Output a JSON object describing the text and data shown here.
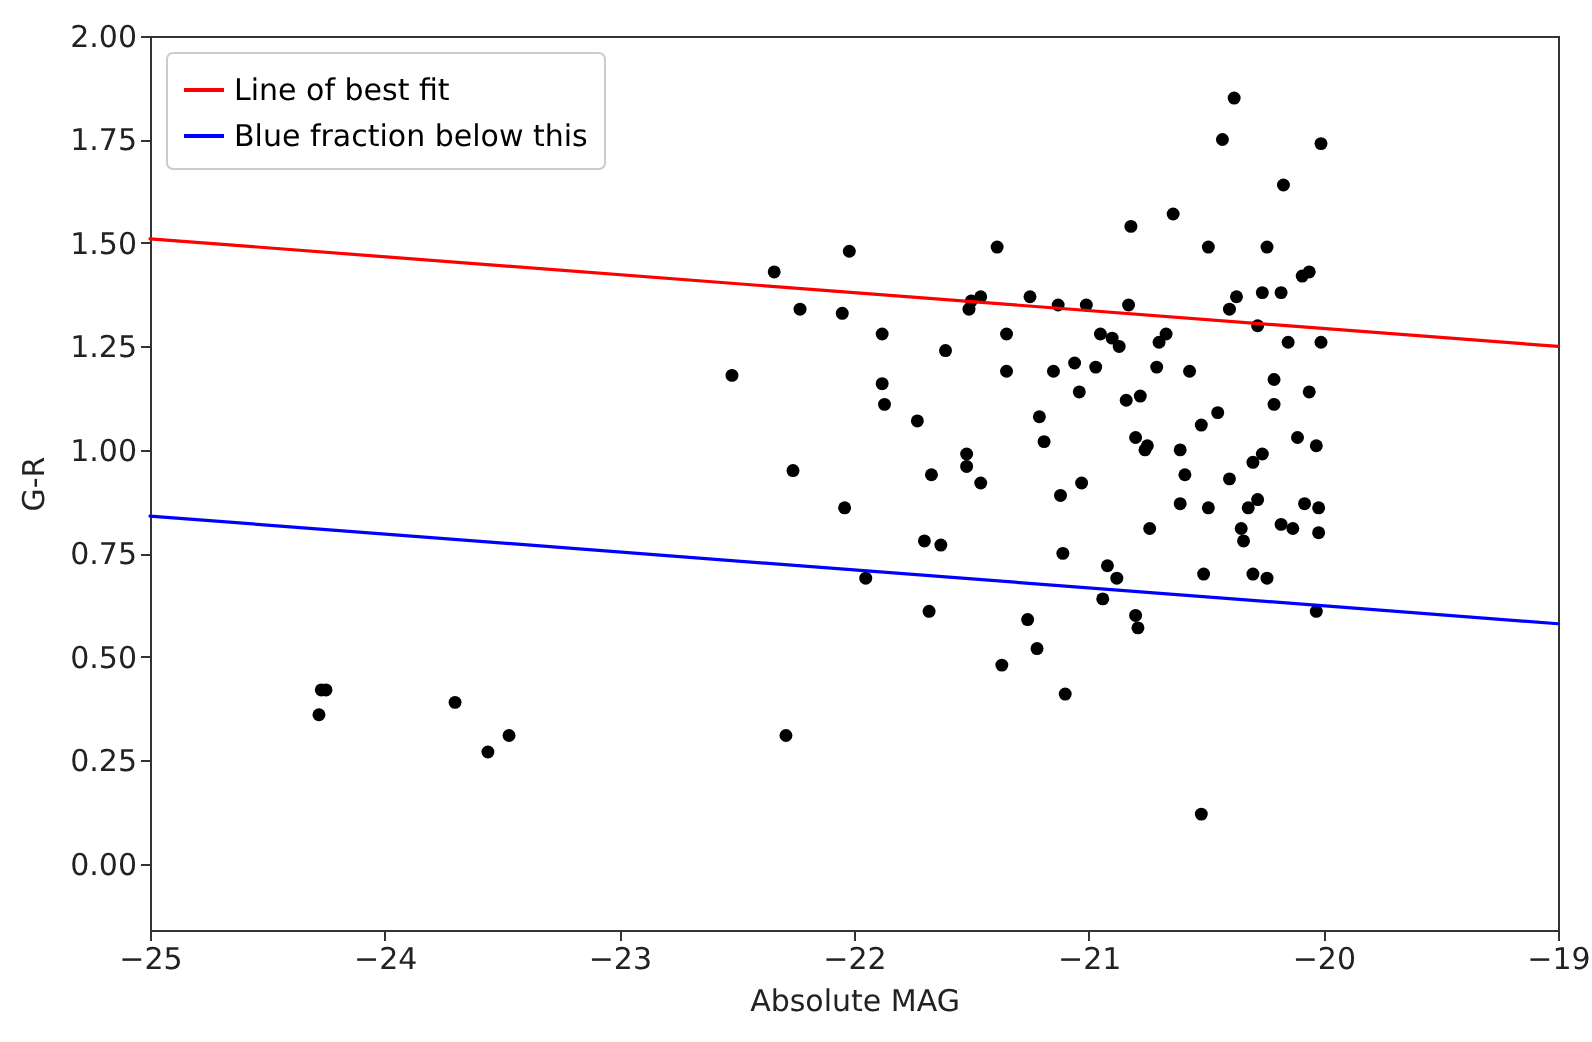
{
  "chart_data": {
    "xlabel": "Absolute MAG",
    "ylabel": "G-R",
    "xlim": [
      -25,
      -19
    ],
    "xticks": [
      -25,
      -24,
      -23,
      -22,
      -21,
      -20,
      -19
    ],
    "ylim": [
      -0.16,
      2.0
    ],
    "yticks": [
      {
        "value": 0,
        "label": "0.00"
      },
      {
        "value": 0.25,
        "label": "0.25"
      },
      {
        "value": 0.5,
        "label": "0.50"
      },
      {
        "value": 0.75,
        "label": "0.75"
      },
      {
        "value": 1,
        "label": "1.00"
      },
      {
        "value": 1.25,
        "label": "1.25"
      },
      {
        "value": 1.5,
        "label": "1.50"
      },
      {
        "value": 1.75,
        "label": "1.75"
      },
      {
        "value": 2,
        "label": "2.00"
      }
    ],
    "type": "scatter",
    "grid": false,
    "legend": "top left",
    "marker": "circle",
    "series": [
      {
        "type": "scatter",
        "color": "#000000",
        "x": [
          -24.28,
          -24.27,
          -24.25,
          -23.7,
          -23.56,
          -23.47,
          -22.52,
          -22.34,
          -22.23,
          -22.26,
          -22.29,
          -22.05,
          -22.02,
          -22.04,
          -21.95,
          -21.88,
          -21.87,
          -21.88,
          -21.73,
          -21.7,
          -21.67,
          -21.68,
          -21.63,
          -21.61,
          -21.51,
          -21.5,
          -21.46,
          -21.39,
          -21.52,
          -21.52,
          -21.46,
          -21.35,
          -21.35,
          -21.37,
          -21.26,
          -21.25,
          -21.22,
          -21.21,
          -21.19,
          -21.15,
          -21.13,
          -21.12,
          -21.11,
          -21.1,
          -21.06,
          -21.04,
          -21.03,
          -21.01,
          -20.97,
          -20.95,
          -20.94,
          -20.92,
          -20.9,
          -20.88,
          -20.87,
          -20.84,
          -20.82,
          -20.83,
          -20.8,
          -20.8,
          -20.79,
          -20.78,
          -20.76,
          -20.75,
          -20.74,
          -20.71,
          -20.7,
          -20.67,
          -20.64,
          -20.61,
          -20.61,
          -20.59,
          -20.57,
          -20.52,
          -20.52,
          -20.51,
          -20.49,
          -20.49,
          -20.45,
          -20.43,
          -20.4,
          -20.4,
          -20.38,
          -20.37,
          -20.35,
          -20.34,
          -20.32,
          -20.3,
          -20.3,
          -20.28,
          -20.28,
          -20.26,
          -20.26,
          -20.24,
          -20.24,
          -20.21,
          -20.21,
          -20.18,
          -20.18,
          -20.17,
          -20.15,
          -20.13,
          -20.11,
          -20.09,
          -20.08,
          -20.06,
          -20.06,
          -20.03,
          -20.02,
          -20.02,
          -20.01,
          -20.01,
          -20.03
        ],
        "values": [
          0.36,
          0.42,
          0.42,
          0.39,
          0.27,
          0.31,
          1.18,
          1.43,
          1.34,
          0.95,
          0.31,
          1.33,
          1.48,
          0.86,
          0.69,
          1.16,
          1.11,
          1.28,
          1.07,
          0.78,
          0.94,
          0.61,
          0.77,
          1.24,
          1.34,
          1.36,
          1.37,
          1.49,
          0.99,
          0.96,
          0.92,
          1.28,
          1.19,
          0.48,
          0.59,
          1.37,
          0.52,
          1.08,
          1.02,
          1.19,
          1.35,
          0.89,
          0.75,
          0.41,
          1.21,
          1.14,
          0.92,
          1.35,
          1.2,
          1.28,
          0.64,
          0.72,
          1.27,
          0.69,
          1.25,
          1.12,
          1.54,
          1.35,
          0.6,
          1.03,
          0.57,
          1.13,
          1.0,
          1.01,
          0.81,
          1.2,
          1.26,
          1.28,
          1.57,
          1.0,
          0.87,
          0.94,
          1.19,
          1.06,
          0.12,
          0.7,
          1.49,
          0.86,
          1.09,
          1.75,
          0.93,
          1.34,
          1.85,
          1.37,
          0.81,
          0.78,
          0.86,
          0.97,
          0.7,
          0.88,
          1.3,
          1.38,
          0.99,
          0.69,
          1.49,
          1.17,
          1.11,
          1.38,
          0.82,
          1.64,
          1.26,
          0.81,
          1.03,
          1.42,
          0.87,
          1.43,
          1.14,
          1.01,
          0.8,
          0.86,
          1.26,
          1.74,
          0.61
        ]
      },
      {
        "type": "line",
        "name": "Line of best fit",
        "color": "#ff0000",
        "marker": "none",
        "x": [
          -25,
          -19
        ],
        "values": [
          1.51,
          1.25
        ]
      },
      {
        "type": "line",
        "name": "Blue fraction below this",
        "color": "#0000ff",
        "marker": "none",
        "x": [
          -25,
          -19
        ],
        "values": [
          0.84,
          0.58
        ]
      }
    ]
  }
}
